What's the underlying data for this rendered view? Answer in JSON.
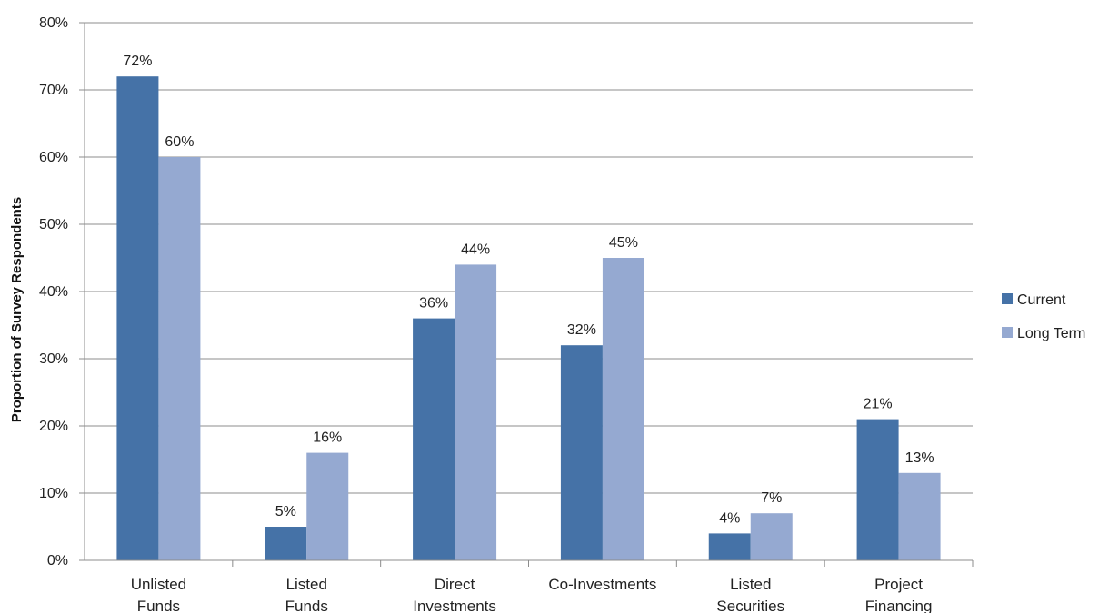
{
  "chart_data": {
    "type": "bar",
    "title": "",
    "xlabel": "",
    "ylabel": "Proportion of Survey Respondents",
    "ylim": [
      0,
      80
    ],
    "yticks": [
      "0%",
      "10%",
      "20%",
      "30%",
      "40%",
      "50%",
      "60%",
      "70%",
      "80%"
    ],
    "grid": true,
    "legend_position": "right",
    "categories": [
      [
        "Unlisted",
        "Funds"
      ],
      [
        "Listed",
        "Funds"
      ],
      [
        "Direct",
        "Investments"
      ],
      [
        "Co-Investments"
      ],
      [
        "Listed",
        "Securities"
      ],
      [
        "Project",
        "Financing"
      ]
    ],
    "series": [
      {
        "name": "Current",
        "color": "#4572a7",
        "values": [
          72,
          5,
          36,
          32,
          4,
          21
        ],
        "labels": [
          "72%",
          "5%",
          "36%",
          "32%",
          "4%",
          "21%"
        ]
      },
      {
        "name": "Long Term",
        "color": "#95a9d1",
        "values": [
          60,
          16,
          44,
          45,
          7,
          13
        ],
        "labels": [
          "60%",
          "16%",
          "44%",
          "45%",
          "7%",
          "13%"
        ]
      }
    ]
  }
}
